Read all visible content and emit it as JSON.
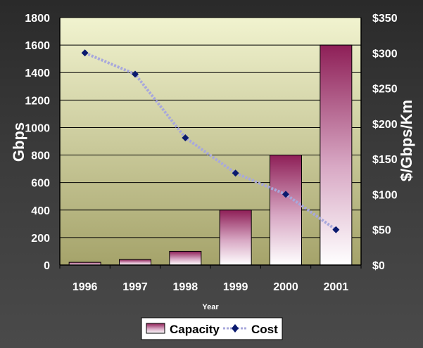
{
  "chart_data": {
    "type": "bar",
    "categories": [
      "1996",
      "1997",
      "1998",
      "1999",
      "2000",
      "2001"
    ],
    "xlabel": "Year",
    "ylabel": "Gbps",
    "ylabel_right": "$/Gbps/Km",
    "ylim": [
      0,
      1800
    ],
    "ylim_right": [
      0,
      350
    ],
    "yticks": [
      "0",
      "200",
      "400",
      "600",
      "800",
      "1000",
      "1200",
      "1400",
      "1600",
      "1800"
    ],
    "yticks_right": [
      "$0",
      "$50",
      "$100",
      "$150",
      "$200",
      "$250",
      "$300",
      "$350"
    ],
    "grid": true,
    "legend_position": "bottom",
    "series": [
      {
        "name": "Capacity",
        "type": "bar",
        "axis": "left",
        "values": [
          20,
          40,
          100,
          400,
          800,
          1600
        ]
      },
      {
        "name": "Cost",
        "type": "line",
        "axis": "right",
        "values": [
          300,
          270,
          180,
          130,
          100,
          50
        ]
      }
    ],
    "colors": {
      "bar_top": "#8e1f57",
      "bar_bottom": "#ffffff",
      "line": "#a8a8dc",
      "marker": "#0a1a6e",
      "plot_bg_top": "#f1f3cf",
      "plot_bg_bottom": "#a5a36a"
    }
  }
}
